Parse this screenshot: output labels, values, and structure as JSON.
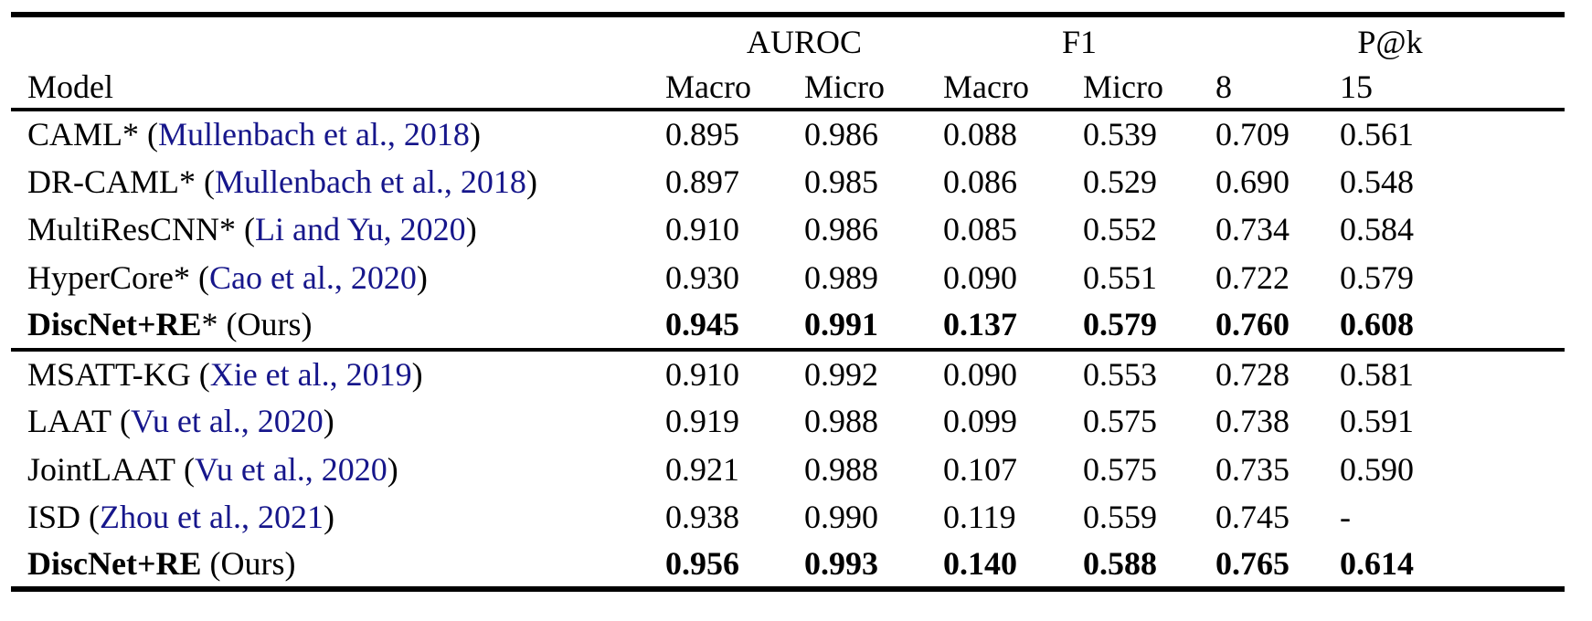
{
  "colors": {
    "text": "#000000",
    "background": "#ffffff",
    "rule": "#000000",
    "citation_link": "#16168B"
  },
  "table": {
    "group_headers": [
      {
        "label": "AUROC"
      },
      {
        "label": "F1"
      },
      {
        "label": "P@k"
      }
    ],
    "columns": [
      "Model",
      "Macro",
      "Micro",
      "Macro",
      "Micro",
      "8",
      "15"
    ],
    "groups": [
      {
        "rows": [
          {
            "name": "CAML",
            "star": "*",
            "paren": "Mullenbach et al., 2018",
            "is_citation": true,
            "bold": false,
            "values": [
              "0.895",
              "0.986",
              "0.088",
              "0.539",
              "0.709",
              "0.561"
            ]
          },
          {
            "name": "DR-CAML",
            "star": "*",
            "paren": "Mullenbach et al., 2018",
            "is_citation": true,
            "bold": false,
            "values": [
              "0.897",
              "0.985",
              "0.086",
              "0.529",
              "0.690",
              "0.548"
            ]
          },
          {
            "name": "MultiResCNN",
            "star": "*",
            "paren": "Li and Yu, 2020",
            "is_citation": true,
            "bold": false,
            "values": [
              "0.910",
              "0.986",
              "0.085",
              "0.552",
              "0.734",
              "0.584"
            ]
          },
          {
            "name": "HyperCore",
            "star": "*",
            "paren": "Cao et al., 2020",
            "is_citation": true,
            "bold": false,
            "values": [
              "0.930",
              "0.989",
              "0.090",
              "0.551",
              "0.722",
              "0.579"
            ]
          },
          {
            "name": "DiscNet+RE",
            "star": "*",
            "paren": "Ours",
            "is_citation": false,
            "bold": true,
            "values": [
              "0.945",
              "0.991",
              "0.137",
              "0.579",
              "0.760",
              "0.608"
            ]
          }
        ]
      },
      {
        "rows": [
          {
            "name": "MSATT-KG",
            "star": "",
            "paren": "Xie et al., 2019",
            "is_citation": true,
            "bold": false,
            "values": [
              "0.910",
              "0.992",
              "0.090",
              "0.553",
              "0.728",
              "0.581"
            ]
          },
          {
            "name": "LAAT",
            "star": "",
            "paren": "Vu et al., 2020",
            "is_citation": true,
            "bold": false,
            "values": [
              "0.919",
              "0.988",
              "0.099",
              "0.575",
              "0.738",
              "0.591"
            ]
          },
          {
            "name": "JointLAAT",
            "star": "",
            "paren": "Vu et al., 2020",
            "is_citation": true,
            "bold": false,
            "values": [
              "0.921",
              "0.988",
              "0.107",
              "0.575",
              "0.735",
              "0.590"
            ]
          },
          {
            "name": "ISD",
            "star": "",
            "paren": "Zhou et al., 2021",
            "is_citation": true,
            "bold": false,
            "values": [
              "0.938",
              "0.990",
              "0.119",
              "0.559",
              "0.745",
              "-"
            ]
          },
          {
            "name": "DiscNet+RE",
            "star": "",
            "paren": "Ours",
            "is_citation": false,
            "bold": true,
            "values": [
              "0.956",
              "0.993",
              "0.140",
              "0.588",
              "0.765",
              "0.614"
            ]
          }
        ]
      }
    ]
  }
}
